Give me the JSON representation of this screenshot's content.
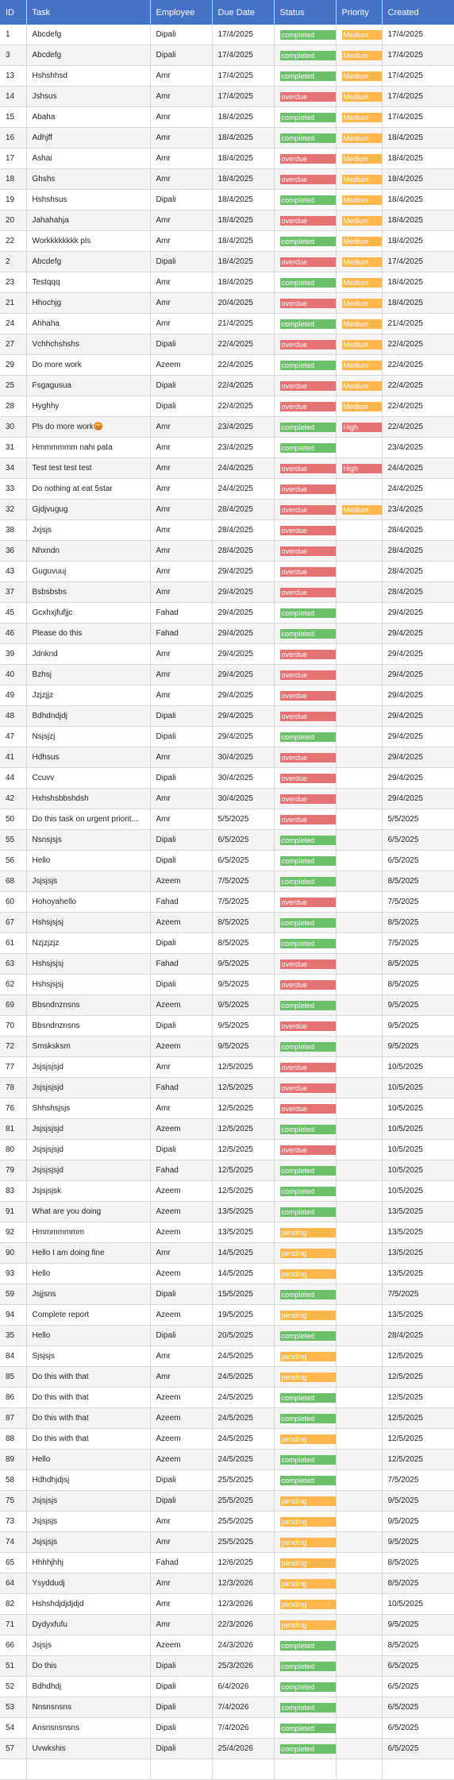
{
  "columns": [
    "ID",
    "Task",
    "Employee",
    "Due Date",
    "Status",
    "Priority",
    "Created"
  ],
  "rows": [
    [
      "1",
      "Abcdefg",
      "Dipali",
      "17/4/2025",
      "completed",
      "Medium",
      "17/4/2025"
    ],
    [
      "3",
      "Abcdefg",
      "Dipali",
      "17/4/2025",
      "completed",
      "Medium",
      "17/4/2025"
    ],
    [
      "13",
      "Hshshhsd",
      "Amr",
      "17/4/2025",
      "completed",
      "Medium",
      "17/4/2025"
    ],
    [
      "14",
      "Jshsus",
      "Amr",
      "17/4/2025",
      "overdue",
      "Medium",
      "17/4/2025"
    ],
    [
      "15",
      "Abaha",
      "Amr",
      "18/4/2025",
      "completed",
      "Medium",
      "17/4/2025"
    ],
    [
      "16",
      "Adhjff",
      "Amr",
      "18/4/2025",
      "completed",
      "Medium",
      "18/4/2025"
    ],
    [
      "17",
      "Ashai",
      "Amr",
      "18/4/2025",
      "overdue",
      "Medium",
      "18/4/2025"
    ],
    [
      "18",
      "Ghshs",
      "Amr",
      "18/4/2025",
      "overdue",
      "Medium",
      "18/4/2025"
    ],
    [
      "19",
      "Hshshsus",
      "Dipali",
      "18/4/2025",
      "completed",
      "Medium",
      "18/4/2025"
    ],
    [
      "20",
      "Jahahahja",
      "Amr",
      "18/4/2025",
      "overdue",
      "Medium",
      "18/4/2025"
    ],
    [
      "22",
      "Workkkkkkkk pls",
      "Amr",
      "18/4/2025",
      "completed",
      "Medium",
      "18/4/2025"
    ],
    [
      "2",
      "Abcdefg",
      "Dipali",
      "18/4/2025",
      "overdue",
      "Medium",
      "17/4/2025"
    ],
    [
      "23",
      "Testqqq",
      "Amr",
      "18/4/2025",
      "completed",
      "Medium",
      "18/4/2025"
    ],
    [
      "21",
      "Hhochjg",
      "Amr",
      "20/4/2025",
      "overdue",
      "Medium",
      "18/4/2025"
    ],
    [
      "24",
      "Ahhaha",
      "Amr",
      "21/4/2025",
      "completed",
      "Medium",
      "21/4/2025"
    ],
    [
      "27",
      "Vchhchshshs",
      "Dipali",
      "22/4/2025",
      "overdue",
      "Medium",
      "22/4/2025"
    ],
    [
      "29",
      "Do more work",
      "Azeem",
      "22/4/2025",
      "completed",
      "Medium",
      "22/4/2025"
    ],
    [
      "25",
      "Fsgagusua",
      "Dipali",
      "22/4/2025",
      "overdue",
      "Medium",
      "22/4/2025"
    ],
    [
      "28",
      "Hyghhy",
      "Dipali",
      "22/4/2025",
      "overdue",
      "Medium",
      "22/4/2025"
    ],
    [
      "30",
      "Pls do more work😡",
      "Amr",
      "23/4/2025",
      "completed",
      "High",
      "22/4/2025"
    ],
    [
      "31",
      "Hmmmmmm nahi pata",
      "Amr",
      "23/4/2025",
      "completed",
      "",
      "23/4/2025"
    ],
    [
      "34",
      "Test test test test",
      "Amr",
      "24/4/2025",
      "overdue",
      "High",
      "24/4/2025"
    ],
    [
      "33",
      "Do nothing at eat 5star",
      "Amr",
      "24/4/2025",
      "overdue",
      "",
      "24/4/2025"
    ],
    [
      "32",
      "Gjdjvugug",
      "Amr",
      "28/4/2025",
      "overdue",
      "Medium",
      "23/4/2025"
    ],
    [
      "38",
      "Jxjsjs",
      "Amr",
      "28/4/2025",
      "overdue",
      "",
      "28/4/2025"
    ],
    [
      "36",
      "Nhxndn",
      "Amr",
      "28/4/2025",
      "overdue",
      "",
      "28/4/2025"
    ],
    [
      "43",
      "Guguvuuj",
      "Amr",
      "29/4/2025",
      "overdue",
      "",
      "28/4/2025"
    ],
    [
      "37",
      "Bsbsbsbs",
      "Amr",
      "29/4/2025",
      "overdue",
      "",
      "28/4/2025"
    ],
    [
      "45",
      "Gcxhxjfufjjc",
      "Fahad",
      "29/4/2025",
      "completed",
      "",
      "29/4/2025"
    ],
    [
      "46",
      "Please do this",
      "Fahad",
      "29/4/2025",
      "completed",
      "",
      "29/4/2025"
    ],
    [
      "39",
      "Jdnknd",
      "Amr",
      "29/4/2025",
      "overdue",
      "",
      "29/4/2025"
    ],
    [
      "40",
      "Bzhsj",
      "Amr",
      "29/4/2025",
      "overdue",
      "",
      "29/4/2025"
    ],
    [
      "49",
      "Jzjzjjz",
      "Amr",
      "29/4/2025",
      "overdue",
      "",
      "29/4/2025"
    ],
    [
      "48",
      "Bdhdndjdj",
      "Dipali",
      "29/4/2025",
      "overdue",
      "",
      "29/4/2025"
    ],
    [
      "47",
      "Nsjsjzj",
      "Dipali",
      "29/4/2025",
      "completed",
      "",
      "29/4/2025"
    ],
    [
      "41",
      "Hdhsus",
      "Amr",
      "30/4/2025",
      "overdue",
      "",
      "29/4/2025"
    ],
    [
      "44",
      "Ccuvv",
      "Dipali",
      "30/4/2025",
      "overdue",
      "",
      "29/4/2025"
    ],
    [
      "42",
      "Hxhshsbbshdsh",
      "Amr",
      "30/4/2025",
      "overdue",
      "",
      "29/4/2025"
    ],
    [
      "50",
      "Do this task on urgent priorit...",
      "Amr",
      "5/5/2025",
      "overdue",
      "",
      "5/5/2025"
    ],
    [
      "55",
      "Nsnsjsjs",
      "Dipali",
      "6/5/2025",
      "completed",
      "",
      "6/5/2025"
    ],
    [
      "56",
      "Hello",
      "Dipali",
      "6/5/2025",
      "completed",
      "",
      "6/5/2025"
    ],
    [
      "68",
      "Jsjsjsjs",
      "Azeem",
      "7/5/2025",
      "completed",
      "",
      "8/5/2025"
    ],
    [
      "60",
      "Hohoyahello",
      "Fahad",
      "7/5/2025",
      "overdue",
      "",
      "7/5/2025"
    ],
    [
      "67",
      "Hshsjsjsj",
      "Azeem",
      "8/5/2025",
      "completed",
      "",
      "8/5/2025"
    ],
    [
      "61",
      "Nzjzjzjz",
      "Dipali",
      "8/5/2025",
      "completed",
      "",
      "7/5/2025"
    ],
    [
      "63",
      "Hshsjsjsj",
      "Fahad",
      "9/5/2025",
      "overdue",
      "",
      "8/5/2025"
    ],
    [
      "62",
      "Hshsjsjsj",
      "Dipali",
      "9/5/2025",
      "overdue",
      "",
      "8/5/2025"
    ],
    [
      "69",
      "Bbsndnznsns",
      "Azeem",
      "9/5/2025",
      "completed",
      "",
      "9/5/2025"
    ],
    [
      "70",
      "Bbsndnznsns",
      "Dipali",
      "9/5/2025",
      "overdue",
      "",
      "9/5/2025"
    ],
    [
      "72",
      "Smsksksm",
      "Azeem",
      "9/5/2025",
      "completed",
      "",
      "9/5/2025"
    ],
    [
      "77",
      "Jsjsjsjsjd",
      "Amr",
      "12/5/2025",
      "overdue",
      "",
      "10/5/2025"
    ],
    [
      "78",
      "Jsjsjsjsjd",
      "Fahad",
      "12/5/2025",
      "overdue",
      "",
      "10/5/2025"
    ],
    [
      "76",
      "Shhshsjsjs",
      "Amr",
      "12/5/2025",
      "overdue",
      "",
      "10/5/2025"
    ],
    [
      "81",
      "Jsjsjsjsjd",
      "Azeem",
      "12/5/2025",
      "completed",
      "",
      "10/5/2025"
    ],
    [
      "80",
      "Jsjsjsjsjd",
      "Dipali",
      "12/5/2025",
      "overdue",
      "",
      "10/5/2025"
    ],
    [
      "79",
      "Jsjsjsjsjd",
      "Fahad",
      "12/5/2025",
      "completed",
      "",
      "10/5/2025"
    ],
    [
      "83",
      "Jsjsjsjsk",
      "Azeem",
      "12/5/2025",
      "completed",
      "",
      "10/5/2025"
    ],
    [
      "91",
      "What are you doing",
      "Azeem",
      "13/5/2025",
      "completed",
      "",
      "13/5/2025"
    ],
    [
      "92",
      "Hmmmmmmm",
      "Azeem",
      "13/5/2025",
      "pending",
      "",
      "13/5/2025"
    ],
    [
      "90",
      "Hello I am doing fine",
      "Amr",
      "14/5/2025",
      "pending",
      "",
      "13/5/2025"
    ],
    [
      "93",
      "Hello",
      "Azeem",
      "14/5/2025",
      "pending",
      "",
      "13/5/2025"
    ],
    [
      "59",
      "Jsjjsns",
      "Dipali",
      "15/5/2025",
      "completed",
      "",
      "7/5/2025"
    ],
    [
      "94",
      "Complete report",
      "Azeem",
      "19/5/2025",
      "pending",
      "",
      "13/5/2025"
    ],
    [
      "35",
      "Hello",
      "Dipali",
      "20/5/2025",
      "completed",
      "",
      "28/4/2025"
    ],
    [
      "84",
      "Sjsjsjs",
      "Amr",
      "24/5/2025",
      "pending",
      "",
      "12/5/2025"
    ],
    [
      "85",
      "Do this with that",
      "Amr",
      "24/5/2025",
      "pending",
      "",
      "12/5/2025"
    ],
    [
      "86",
      "Do this with that",
      "Azeem",
      "24/5/2025",
      "completed",
      "",
      "12/5/2025"
    ],
    [
      "87",
      "Do this with that",
      "Azeem",
      "24/5/2025",
      "completed",
      "",
      "12/5/2025"
    ],
    [
      "88",
      "Do this with that",
      "Azeem",
      "24/5/2025",
      "pending",
      "",
      "12/5/2025"
    ],
    [
      "89",
      "Hello",
      "Azeem",
      "24/5/2025",
      "completed",
      "",
      "12/5/2025"
    ],
    [
      "58",
      "Hdhdhjdjsj",
      "Dipali",
      "25/5/2025",
      "completed",
      "",
      "7/5/2025"
    ],
    [
      "75",
      "Jsjsjsjs",
      "Dipali",
      "25/5/2025",
      "pending",
      "",
      "9/5/2025"
    ],
    [
      "73",
      "Jsjsjsjs",
      "Amr",
      "25/5/2025",
      "pending",
      "",
      "9/5/2025"
    ],
    [
      "74",
      "Jsjsjsjs",
      "Amr",
      "25/5/2025",
      "pending",
      "",
      "9/5/2025"
    ],
    [
      "65",
      "Hhhhjhhj",
      "Fahad",
      "12/6/2025",
      "pending",
      "",
      "8/5/2025"
    ],
    [
      "64",
      "Ysyddudj",
      "Amr",
      "12/3/2026",
      "pending",
      "",
      "8/5/2025"
    ],
    [
      "82",
      "Hshshdjdjdjdjd",
      "Amr",
      "12/3/2026",
      "pending",
      "",
      "10/5/2025"
    ],
    [
      "71",
      "Dydyxfufu",
      "Amr",
      "22/3/2026",
      "pending",
      "",
      "9/5/2025"
    ],
    [
      "66",
      "Jsjsjs",
      "Azeem",
      "24/3/2026",
      "completed",
      "",
      "8/5/2025"
    ],
    [
      "51",
      "Do this",
      "Dipali",
      "25/3/2026",
      "completed",
      "",
      "6/5/2025"
    ],
    [
      "52",
      "Bdhdhdj",
      "Dipali",
      "6/4/2026",
      "completed",
      "",
      "6/5/2025"
    ],
    [
      "53",
      "Nnsnsnsns",
      "Dipali",
      "7/4/2026",
      "completed",
      "",
      "6/5/2025"
    ],
    [
      "54",
      "Ansnsnsnsns",
      "Dipali",
      "7/4/2026",
      "completed",
      "",
      "6/5/2025"
    ],
    [
      "57",
      "Uvwkshis",
      "Dipali",
      "25/4/2026",
      "completed",
      "",
      "6/5/2025"
    ],
    [
      "",
      "",
      "",
      "",
      "",
      "",
      ""
    ]
  ],
  "status_colors": {
    "completed": "#6cc06a",
    "overdue": "#e57373",
    "pending": "#ffb74d"
  },
  "priority_colors": {
    "Medium": "#ffb74d",
    "High": "#e57373"
  },
  "header_color": "#4472c4"
}
